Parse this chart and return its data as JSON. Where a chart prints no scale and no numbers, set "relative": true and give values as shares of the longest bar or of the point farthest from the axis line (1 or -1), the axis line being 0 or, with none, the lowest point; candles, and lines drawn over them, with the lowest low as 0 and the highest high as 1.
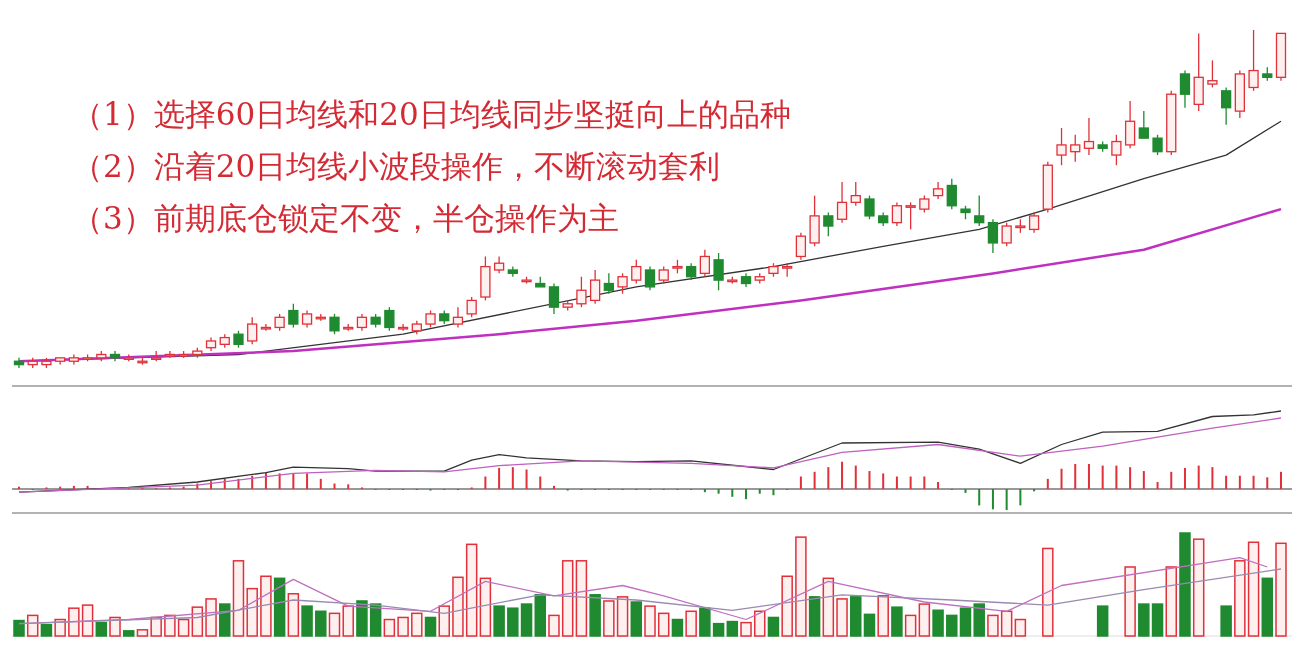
{
  "chart_data": [
    {
      "type": "candlestick",
      "relative": true,
      "categories": [
        null,
        null,
        null,
        null,
        null,
        null,
        null,
        null,
        null,
        null,
        null,
        null,
        null,
        null,
        null,
        null,
        null,
        null,
        null,
        null,
        null,
        null,
        null,
        null,
        null,
        null,
        null,
        null,
        null,
        null,
        null,
        null,
        null,
        null,
        null,
        null,
        null,
        null,
        null,
        null,
        null,
        null,
        null,
        null,
        null,
        null,
        null,
        null,
        null,
        null,
        null,
        null,
        null,
        null,
        null,
        null,
        null,
        null,
        null,
        null,
        null,
        null,
        null,
        null,
        null,
        null,
        null,
        null,
        null,
        null,
        null,
        null,
        null,
        null,
        null,
        null,
        null,
        null,
        null,
        null,
        null,
        null,
        null,
        null,
        null,
        null,
        null,
        null,
        null,
        null,
        null,
        null,
        null
      ],
      "ohlc": [
        [
          0.02,
          0.03,
          0,
          0.01
        ],
        [
          0.01,
          0.03,
          0,
          0.02
        ],
        [
          0.01,
          0.03,
          0,
          0.02
        ],
        [
          0.02,
          0.03,
          0.01,
          0.03
        ],
        [
          0.02,
          0.04,
          0.01,
          0.03
        ],
        [
          0.03,
          0.04,
          0.02,
          0.03
        ],
        [
          0.03,
          0.05,
          0.02,
          0.04
        ],
        [
          0.04,
          0.05,
          0.02,
          0.03
        ],
        [
          0.03,
          0.04,
          0.02,
          0.03
        ],
        [
          0.02,
          0.03,
          0.01,
          0.02
        ],
        [
          0.03,
          0.05,
          0.02,
          0.03
        ],
        [
          0.04,
          0.05,
          0.03,
          0.04
        ],
        [
          0.04,
          0.05,
          0.03,
          0.04
        ],
        [
          0.04,
          0.06,
          0.03,
          0.05
        ],
        [
          0.06,
          0.09,
          0.05,
          0.08
        ],
        [
          0.07,
          0.1,
          0.06,
          0.09
        ],
        [
          0.1,
          0.11,
          0.06,
          0.07
        ],
        [
          0.08,
          0.15,
          0.07,
          0.13
        ],
        [
          0.12,
          0.13,
          0.11,
          0.12
        ],
        [
          0.12,
          0.16,
          0.11,
          0.15
        ],
        [
          0.17,
          0.19,
          0.12,
          0.13
        ],
        [
          0.13,
          0.17,
          0.12,
          0.16
        ],
        [
          0.15,
          0.16,
          0.14,
          0.15
        ],
        [
          0.15,
          0.16,
          0.1,
          0.11
        ],
        [
          0.12,
          0.13,
          0.11,
          0.12
        ],
        [
          0.12,
          0.16,
          0.11,
          0.15
        ],
        [
          0.15,
          0.16,
          0.12,
          0.13
        ],
        [
          0.17,
          0.18,
          0.11,
          0.12
        ],
        [
          0.12,
          0.13,
          0.11,
          0.12
        ],
        [
          0.11,
          0.14,
          0.1,
          0.13
        ],
        [
          0.13,
          0.17,
          0.12,
          0.16
        ],
        [
          0.16,
          0.17,
          0.13,
          0.14
        ],
        [
          0.13,
          0.18,
          0.12,
          0.15
        ],
        [
          0.16,
          0.21,
          0.15,
          0.2
        ],
        [
          0.21,
          0.33,
          0.2,
          0.3
        ],
        [
          0.29,
          0.33,
          0.28,
          0.31
        ],
        [
          0.29,
          0.3,
          0.27,
          0.28
        ],
        [
          0.26,
          0.27,
          0.25,
          0.26
        ],
        [
          0.25,
          0.27,
          0.24,
          0.24
        ],
        [
          0.24,
          0.25,
          0.16,
          0.18
        ],
        [
          0.18,
          0.2,
          0.17,
          0.19
        ],
        [
          0.19,
          0.27,
          0.18,
          0.23
        ],
        [
          0.2,
          0.29,
          0.19,
          0.26
        ],
        [
          0.25,
          0.28,
          0.22,
          0.23
        ],
        [
          0.24,
          0.28,
          0.22,
          0.27
        ],
        [
          0.26,
          0.32,
          0.25,
          0.3
        ],
        [
          0.29,
          0.3,
          0.23,
          0.24
        ],
        [
          0.26,
          0.3,
          0.25,
          0.29
        ],
        [
          0.3,
          0.32,
          0.28,
          0.3
        ],
        [
          0.3,
          0.31,
          0.26,
          0.27
        ],
        [
          0.28,
          0.35,
          0.27,
          0.33
        ],
        [
          0.32,
          0.34,
          0.23,
          0.26
        ],
        [
          0.26,
          0.27,
          0.25,
          0.26
        ],
        [
          0.27,
          0.28,
          0.24,
          0.25
        ],
        [
          0.26,
          0.28,
          0.25,
          0.27
        ],
        [
          0.28,
          0.31,
          0.27,
          0.3
        ],
        [
          0.3,
          0.31,
          0.27,
          0.3
        ],
        [
          0.33,
          0.4,
          0.32,
          0.39
        ],
        [
          0.37,
          0.51,
          0.36,
          0.45
        ],
        [
          0.45,
          0.46,
          0.39,
          0.42
        ],
        [
          0.44,
          0.55,
          0.43,
          0.49
        ],
        [
          0.49,
          0.55,
          0.48,
          0.51
        ],
        [
          0.5,
          0.51,
          0.44,
          0.45
        ],
        [
          0.45,
          0.46,
          0.42,
          0.43
        ],
        [
          0.43,
          0.49,
          0.42,
          0.48
        ],
        [
          0.48,
          0.49,
          0.41,
          0.48
        ],
        [
          0.47,
          0.51,
          0.46,
          0.5
        ],
        [
          0.51,
          0.55,
          0.5,
          0.53
        ],
        [
          0.54,
          0.56,
          0.47,
          0.48
        ],
        [
          0.47,
          0.48,
          0.44,
          0.46
        ],
        [
          0.45,
          0.51,
          0.42,
          0.43
        ],
        [
          0.43,
          0.44,
          0.34,
          0.37
        ],
        [
          0.37,
          0.43,
          0.36,
          0.42
        ],
        [
          0.42,
          0.44,
          0.4,
          0.42
        ],
        [
          0.41,
          0.46,
          0.4,
          0.45
        ],
        [
          0.47,
          0.61,
          0.46,
          0.6
        ],
        [
          0.63,
          0.71,
          0.6,
          0.66
        ],
        [
          0.64,
          0.69,
          0.61,
          0.66
        ],
        [
          0.65,
          0.74,
          0.63,
          0.67
        ],
        [
          0.66,
          0.67,
          0.64,
          0.65
        ],
        [
          0.63,
          0.69,
          0.6,
          0.67
        ],
        [
          0.66,
          0.79,
          0.65,
          0.73
        ],
        [
          0.71,
          0.76,
          0.68,
          0.68
        ],
        [
          0.68,
          0.69,
          0.63,
          0.64
        ],
        [
          0.64,
          0.82,
          0.63,
          0.81
        ],
        [
          0.87,
          0.88,
          0.77,
          0.81
        ],
        [
          0.78,
          0.99,
          0.76,
          0.86
        ],
        [
          0.84,
          0.91,
          0.83,
          0.85
        ],
        [
          0.82,
          0.83,
          0.72,
          0.77
        ],
        [
          0.76,
          0.88,
          0.74,
          0.87
        ],
        [
          0.83,
          1,
          0.82,
          0.88
        ],
        [
          0.87,
          0.89,
          0.85,
          0.86
        ],
        [
          0.86,
          0.99,
          0.85,
          0.99
        ]
      ],
      "series": [
        {
          "type": "line",
          "color": "#333333",
          "values": [
            0.02,
            null,
            null,
            null,
            null,
            null,
            null,
            null,
            null,
            null,
            null,
            null,
            null,
            null,
            null,
            null,
            0.04,
            null,
            null,
            null,
            null,
            null,
            null,
            null,
            null,
            null,
            null,
            null,
            0.1,
            null,
            null,
            null,
            null,
            null,
            null,
            null,
            null,
            null,
            null,
            null,
            null,
            null,
            null,
            null,
            null,
            0.24,
            null,
            null,
            null,
            null,
            null,
            null,
            null,
            null,
            null,
            0.3,
            null,
            null,
            null,
            null,
            null,
            null,
            null,
            0.36,
            null,
            null,
            null,
            null,
            null,
            null,
            0.41,
            null,
            null,
            null,
            null,
            0.47,
            null,
            null,
            null,
            null,
            null,
            null,
            0.56,
            null,
            null,
            null,
            null,
            null,
            0.63,
            null,
            null,
            null,
            0.73
          ]
        },
        {
          "type": "line",
          "color": "#c030c0",
          "values": [
            0.02,
            null,
            null,
            null,
            null,
            null,
            null,
            null,
            null,
            null,
            null,
            null,
            null,
            null,
            null,
            null,
            null,
            null,
            null,
            null,
            0.05,
            null,
            null,
            null,
            null,
            null,
            null,
            null,
            null,
            null,
            null,
            null,
            null,
            null,
            null,
            0.1,
            null,
            null,
            null,
            null,
            null,
            null,
            null,
            null,
            null,
            0.14,
            null,
            null,
            null,
            null,
            null,
            null,
            null,
            null,
            null,
            null,
            null,
            0.2,
            null,
            null,
            null,
            null,
            null,
            null,
            null,
            null,
            null,
            null,
            null,
            null,
            null,
            0.28,
            null,
            null,
            null,
            null,
            null,
            null,
            null,
            null,
            null,
            null,
            0.35,
            null,
            null,
            null,
            null,
            null,
            null,
            null,
            null,
            null,
            0.47
          ]
        }
      ],
      "annotations": [
        "（1）选择60日均线和20日均线同步坚挺向上的品种",
        "（2）沿着20日均线小波段操作，不断滚动套利",
        "（3）前期底仓锁定不变，半仓操作为主"
      ]
    },
    {
      "type": "bar",
      "relative": true,
      "categories": [
        null,
        null,
        null,
        null,
        null,
        null,
        null,
        null,
        null,
        null,
        null,
        null,
        null,
        null,
        null,
        null,
        null,
        null,
        null,
        null,
        null,
        null,
        null,
        null,
        null,
        null,
        null,
        null,
        null,
        null,
        null,
        null,
        null,
        null,
        null,
        null,
        null,
        null,
        null,
        null,
        null,
        null,
        null,
        null,
        null,
        null,
        null,
        null,
        null,
        null,
        null,
        null,
        null,
        null,
        null,
        null,
        null,
        null,
        null,
        null,
        null,
        null,
        null,
        null,
        null,
        null,
        null,
        null,
        null,
        null,
        null,
        null,
        null,
        null,
        null,
        null,
        null,
        null,
        null,
        null,
        null,
        null,
        null,
        null,
        null,
        null,
        null,
        null,
        null,
        null,
        null,
        null,
        null
      ],
      "series": [
        {
          "type": "bar",
          "values": [
            0.03,
            0,
            0.02,
            0.03,
            0.04,
            0.04,
            null,
            null,
            0.01,
            0.01,
            0.01,
            0.02,
            0.03,
            0.07,
            0.1,
            0.13,
            0.13,
            0.17,
            0.21,
            0.2,
            0.2,
            0.2,
            0.13,
            0.07,
            0.06,
            0.02,
            0,
            -0.01,
            -0.01,
            -0.01,
            -0.02,
            -0.01,
            -0.01,
            0.02,
            0.16,
            0.27,
            0.28,
            0.25,
            0.16,
            0.04,
            -0.02,
            -0.01,
            -0.01,
            -0.01,
            -0.01,
            -0.01,
            0,
            0,
            0,
            0,
            -0.04,
            -0.06,
            -0.1,
            -0.13,
            -0.06,
            -0.08,
            0,
            0.16,
            0.22,
            0.28,
            0.35,
            0.3,
            0.23,
            0.2,
            0.16,
            0.16,
            0.16,
            0.09,
            0,
            -0.05,
            -0.21,
            -0.26,
            -0.27,
            -0.21,
            -0.03,
            0.13,
            0.26,
            0.32,
            0.32,
            0.3,
            0.3,
            0.28,
            0.23,
            0.09,
            0.22,
            0.27,
            0.3,
            0.28,
            0.17,
            0.17,
            0.17,
            0.15,
            0.22
          ],
          "colors": [
            "#e0303a",
            "#e0303a",
            "#e0303a",
            "#e0303a",
            "#e0303a",
            "#e0303a",
            "#e0303a",
            "#e0303a",
            "#e0303a",
            "#e0303a",
            "#e0303a",
            "#e0303a",
            "#e0303a",
            "#e0303a",
            "#e0303a",
            "#e0303a",
            "#e0303a",
            "#e0303a",
            "#e0303a",
            "#e0303a",
            "#e0303a",
            "#e0303a",
            "#e0303a",
            "#e0303a",
            "#e0303a",
            "#e0303a",
            "#e0303a",
            "#1f8a2f",
            "#1f8a2f",
            "#1f8a2f",
            "#1f8a2f",
            "#1f8a2f",
            "#1f8a2f",
            "#e0303a",
            "#e0303a",
            "#e0303a",
            "#e0303a",
            "#e0303a",
            "#e0303a",
            "#e0303a",
            "#1f8a2f",
            "#1f8a2f",
            "#1f8a2f",
            "#1f8a2f",
            "#1f8a2f",
            "#1f8a2f",
            "#e0303a",
            "#e0303a",
            "#e0303a",
            "#e0303a",
            "#1f8a2f",
            "#1f8a2f",
            "#1f8a2f",
            "#1f8a2f",
            "#1f8a2f",
            "#1f8a2f",
            "#e0303a",
            "#e0303a",
            "#e0303a",
            "#e0303a",
            "#e0303a",
            "#e0303a",
            "#e0303a",
            "#e0303a",
            "#e0303a",
            "#e0303a",
            "#e0303a",
            "#e0303a",
            "#e0303a",
            "#1f8a2f",
            "#1f8a2f",
            "#1f8a2f",
            "#1f8a2f",
            "#1f8a2f",
            "#1f8a2f",
            "#e0303a",
            "#e0303a",
            "#e0303a",
            "#e0303a",
            "#e0303a",
            "#e0303a",
            "#e0303a",
            "#e0303a",
            "#e0303a",
            "#e0303a",
            "#e0303a",
            "#e0303a",
            "#e0303a",
            "#e0303a",
            "#e0303a",
            "#e0303a",
            "#e0303a",
            "#e0303a"
          ]
        },
        {
          "type": "line",
          "color": "#333333",
          "values": [
            -0.04,
            null,
            null,
            null,
            null,
            null,
            null,
            null,
            0.02,
            null,
            null,
            null,
            null,
            0.09,
            null,
            null,
            null,
            null,
            0.21,
            null,
            0.28,
            null,
            null,
            null,
            0.26,
            null,
            0.23,
            null,
            null,
            null,
            null,
            0.23,
            null,
            0.37,
            null,
            0.44,
            null,
            0.4,
            null,
            null,
            null,
            0.36,
            null,
            null,
            null,
            0.35,
            null,
            null,
            null,
            0.36,
            null,
            null,
            null,
            null,
            null,
            0.25,
            null,
            null,
            null,
            null,
            0.59,
            null,
            null,
            null,
            null,
            null,
            null,
            0.6,
            null,
            null,
            0.51,
            null,
            null,
            0.33,
            null,
            null,
            0.57,
            null,
            null,
            0.73,
            null,
            null,
            null,
            0.74,
            null,
            null,
            null,
            0.93,
            null,
            null,
            0.95,
            null,
            1
          ]
        },
        {
          "type": "line",
          "color": "#c060c0",
          "values": [
            -0.04,
            null,
            null,
            null,
            null,
            null,
            null,
            null,
            null,
            null,
            null,
            null,
            null,
            0.05,
            null,
            null,
            null,
            null,
            null,
            null,
            0.2,
            null,
            null,
            null,
            null,
            null,
            0.24,
            null,
            null,
            null,
            null,
            0.22,
            null,
            null,
            null,
            0.3,
            null,
            null,
            null,
            null,
            null,
            0.36,
            null,
            null,
            null,
            null,
            null,
            null,
            null,
            0.33,
            null,
            null,
            null,
            null,
            null,
            0.27,
            null,
            null,
            null,
            null,
            0.47,
            null,
            null,
            null,
            null,
            null,
            null,
            0.57,
            null,
            null,
            null,
            null,
            null,
            0.42,
            null,
            null,
            null,
            null,
            null,
            0.55,
            null,
            null,
            null,
            null,
            null,
            null,
            null,
            0.78,
            null,
            null,
            null,
            null,
            0.91
          ]
        }
      ]
    },
    {
      "type": "bar",
      "relative": true,
      "categories": [
        null,
        null,
        null,
        null,
        null,
        null,
        null,
        null,
        null,
        null,
        null,
        null,
        null,
        null,
        null,
        null,
        null,
        null,
        null,
        null,
        null,
        null,
        null,
        null,
        null,
        null,
        null,
        null,
        null,
        null,
        null,
        null,
        null,
        null,
        null,
        null,
        null,
        null,
        null,
        null,
        null,
        null,
        null,
        null,
        null,
        null,
        null,
        null,
        null,
        null,
        null,
        null,
        null,
        null,
        null,
        null,
        null,
        null,
        null,
        null,
        null,
        null,
        null,
        null,
        null,
        null,
        null,
        null,
        null,
        null,
        null,
        null,
        null,
        null,
        null,
        null,
        null,
        null,
        null,
        null,
        null,
        null,
        null,
        null,
        null,
        null,
        null,
        null,
        null,
        null,
        null,
        null,
        null
      ],
      "series": [
        {
          "type": "bar",
          "values": [
            0.15,
            0.2,
            0.11,
            0.16,
            0.27,
            0.3,
            0.13,
            0.18,
            0.05,
            0.06,
            0.18,
            0.2,
            0.16,
            0.28,
            0.36,
            0.31,
            0.73,
            0.46,
            0.58,
            0.56,
            0.41,
            0.29,
            0.24,
            0.22,
            0.29,
            0.34,
            0.31,
            0.16,
            0.18,
            0.22,
            0.18,
            0.29,
            0.57,
            0.89,
            0.56,
            0.29,
            0.27,
            0.31,
            0.4,
            0.2,
            0.73,
            0.73,
            0.4,
            0.34,
            0.38,
            0.33,
            0.29,
            0.22,
            0.16,
            0.24,
            0.27,
            0.12,
            0.14,
            0.13,
            0.24,
            0.18,
            0.58,
            0.96,
            0.38,
            0.56,
            0.36,
            0.38,
            0.21,
            0.39,
            0.28,
            0.2,
            0.31,
            0.25,
            0.2,
            0.27,
            0.31,
            0.2,
            0.24,
            0.16,
            null,
            0.85,
            null,
            null,
            null,
            0.29,
            null,
            0.67,
            0.31,
            0.31,
            0.67,
            1,
            0.94,
            null,
            0.29,
            0.73,
            0.91,
            0.56,
            0.9
          ],
          "colors": [
            "#1f8a2f",
            "#e0303a",
            "#1f8a2f",
            "#e0303a",
            "#e0303a",
            "#e0303a",
            "#1f8a2f",
            "#e0303a",
            "#1f8a2f",
            "#e0303a",
            "#e0303a",
            "#e0303a",
            "#e0303a",
            "#e0303a",
            "#e0303a",
            "#1f8a2f",
            "#e0303a",
            "#e0303a",
            "#e0303a",
            "#1f8a2f",
            "#e0303a",
            "#1f8a2f",
            "#1f8a2f",
            "#e0303a",
            "#e0303a",
            "#1f8a2f",
            "#1f8a2f",
            "#e0303a",
            "#e0303a",
            "#e0303a",
            "#1f8a2f",
            "#e0303a",
            "#e0303a",
            "#e0303a",
            "#e0303a",
            "#1f8a2f",
            "#1f8a2f",
            "#1f8a2f",
            "#1f8a2f",
            "#e0303a",
            "#e0303a",
            "#e0303a",
            "#1f8a2f",
            "#e0303a",
            "#e0303a",
            "#1f8a2f",
            "#e0303a",
            "#e0303a",
            "#1f8a2f",
            "#e0303a",
            "#1f8a2f",
            "#1f8a2f",
            "#1f8a2f",
            "#e0303a",
            "#e0303a",
            "#1f8a2f",
            "#e0303a",
            "#e0303a",
            "#1f8a2f",
            "#e0303a",
            "#e0303a",
            "#1f8a2f",
            "#1f8a2f",
            "#e0303a",
            "#1f8a2f",
            "#e0303a",
            "#e0303a",
            "#1f8a2f",
            "#1f8a2f",
            "#1f8a2f",
            "#1f8a2f",
            "#e0303a",
            "#e0303a",
            "#e0303a",
            null,
            "#e0303a",
            null,
            null,
            null,
            "#1f8a2f",
            null,
            "#e0303a",
            "#1f8a2f",
            "#1f8a2f",
            "#e0303a",
            "#1f8a2f",
            "#e0303a",
            null,
            "#1f8a2f",
            "#e0303a",
            "#e0303a",
            "#1f8a2f",
            "#e0303a"
          ]
        },
        {
          "type": "line",
          "color": "#c070c0",
          "values": [
            0.12,
            null,
            null,
            null,
            null,
            null,
            null,
            null,
            0.16,
            null,
            null,
            null,
            null,
            null,
            null,
            null,
            0.25,
            null,
            null,
            null,
            0.55,
            null,
            null,
            null,
            0.29,
            null,
            null,
            null,
            null,
            null,
            0.24,
            null,
            null,
            null,
            0.53,
            null,
            null,
            null,
            null,
            0.39,
            null,
            null,
            null,
            null,
            0.49,
            null,
            null,
            0.39,
            null,
            null,
            null,
            null,
            null,
            0.16,
            null,
            null,
            null,
            null,
            null,
            0.53,
            null,
            null,
            null,
            null,
            null,
            null,
            0.33,
            null,
            null,
            null,
            null,
            null,
            0.24,
            null,
            null,
            null,
            0.49,
            null,
            null,
            null,
            null,
            null,
            null,
            null,
            null,
            null,
            null,
            null,
            null,
            0.76,
            null,
            0.67,
            null
          ]
        },
        {
          "type": "line",
          "color": "#9a8ab0",
          "values": [
            0.12,
            null,
            null,
            null,
            null,
            null,
            null,
            null,
            null,
            null,
            null,
            null,
            null,
            0.18,
            null,
            null,
            null,
            null,
            null,
            null,
            0.35,
            null,
            null,
            null,
            null,
            null,
            0.3,
            null,
            null,
            null,
            null,
            0.22,
            null,
            null,
            null,
            null,
            null,
            null,
            0.4,
            null,
            null,
            null,
            null,
            null,
            null,
            0.35,
            null,
            null,
            null,
            null,
            null,
            null,
            0.25,
            null,
            null,
            null,
            null,
            null,
            null,
            null,
            0.4,
            null,
            null,
            null,
            null,
            null,
            null,
            null,
            0.35,
            null,
            null,
            null,
            null,
            null,
            null,
            0.3,
            null,
            null,
            null,
            null,
            null,
            null,
            0.45,
            null,
            null,
            null,
            null,
            null,
            null,
            null,
            null,
            null,
            0.65
          ]
        }
      ]
    }
  ]
}
